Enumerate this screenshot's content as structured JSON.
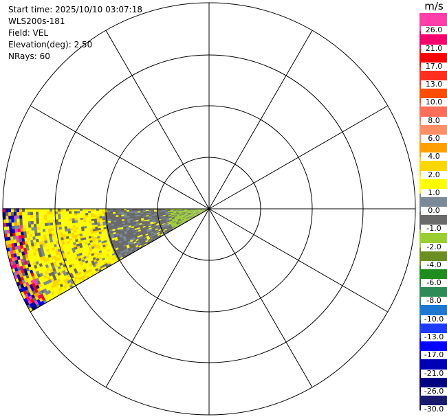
{
  "header": {
    "start_time": "Start time: 2025/10/10 03:07:18",
    "instrument": "WLS200s-181",
    "field": "Field: VEL",
    "elevation": "Elevation(deg): 2.50",
    "nrays": "NRays: 60"
  },
  "colorbar": {
    "unit": "m/s",
    "levels": [
      {
        "label": "26.0",
        "color": "#ff3fa9"
      },
      {
        "label": "21.0",
        "color": "#f5006d"
      },
      {
        "label": "17.0",
        "color": "#ff0000"
      },
      {
        "label": "13.0",
        "color": "#ff2f1f"
      },
      {
        "label": "10.0",
        "color": "#ff4d00"
      },
      {
        "label": "8.0",
        "color": "#ff6e5a"
      },
      {
        "label": "6.0",
        "color": "#ff8f66"
      },
      {
        "label": "4.0",
        "color": "#ff9f00"
      },
      {
        "label": "2.0",
        "color": "#ffd700"
      },
      {
        "label": "1.0",
        "color": "#ffff00"
      },
      {
        "label": "0.0",
        "color": "#7a8a99"
      },
      {
        "label": "-1.0",
        "color": "#6a6a6a"
      },
      {
        "label": "-2.0",
        "color": "#9acd32"
      },
      {
        "label": "-4.0",
        "color": "#6b8e23"
      },
      {
        "label": "-6.0",
        "color": "#1e8c1e"
      },
      {
        "label": "-8.0",
        "color": "#2e8b57"
      },
      {
        "label": "-10.0",
        "color": "#1e78d2"
      },
      {
        "label": "-13.0",
        "color": "#1e3cff"
      },
      {
        "label": "-17.0",
        "color": "#0000ff"
      },
      {
        "label": "-21.0",
        "color": "#0000b4"
      },
      {
        "label": "-26.0",
        "color": "#000080"
      },
      {
        "label": "-30.0",
        "color": "#19196e"
      }
    ]
  },
  "chart_data": {
    "type": "heatmap",
    "projection": "polar PPI",
    "field": "VEL",
    "elevation_deg": 2.5,
    "nrays": 60,
    "range_rings": 4,
    "spokes_deg": [
      0,
      30,
      60,
      90,
      120,
      150,
      180,
      210,
      240,
      270,
      300,
      330
    ],
    "sector_azimuth_deg": [
      240,
      270
    ],
    "sector_pattern": [
      {
        "range_fraction": [
          0.0,
          0.2
        ],
        "dominant_value_ms": -2.0
      },
      {
        "range_fraction": [
          0.2,
          0.5
        ],
        "dominant_value_ms": -1.0
      },
      {
        "range_fraction": [
          0.5,
          0.9
        ],
        "dominant_value_ms": 1.0
      },
      {
        "range_fraction": [
          0.9,
          1.0
        ],
        "dominant_value_ms": "mixed -30.0 to 26.0"
      }
    ],
    "grid": true
  }
}
